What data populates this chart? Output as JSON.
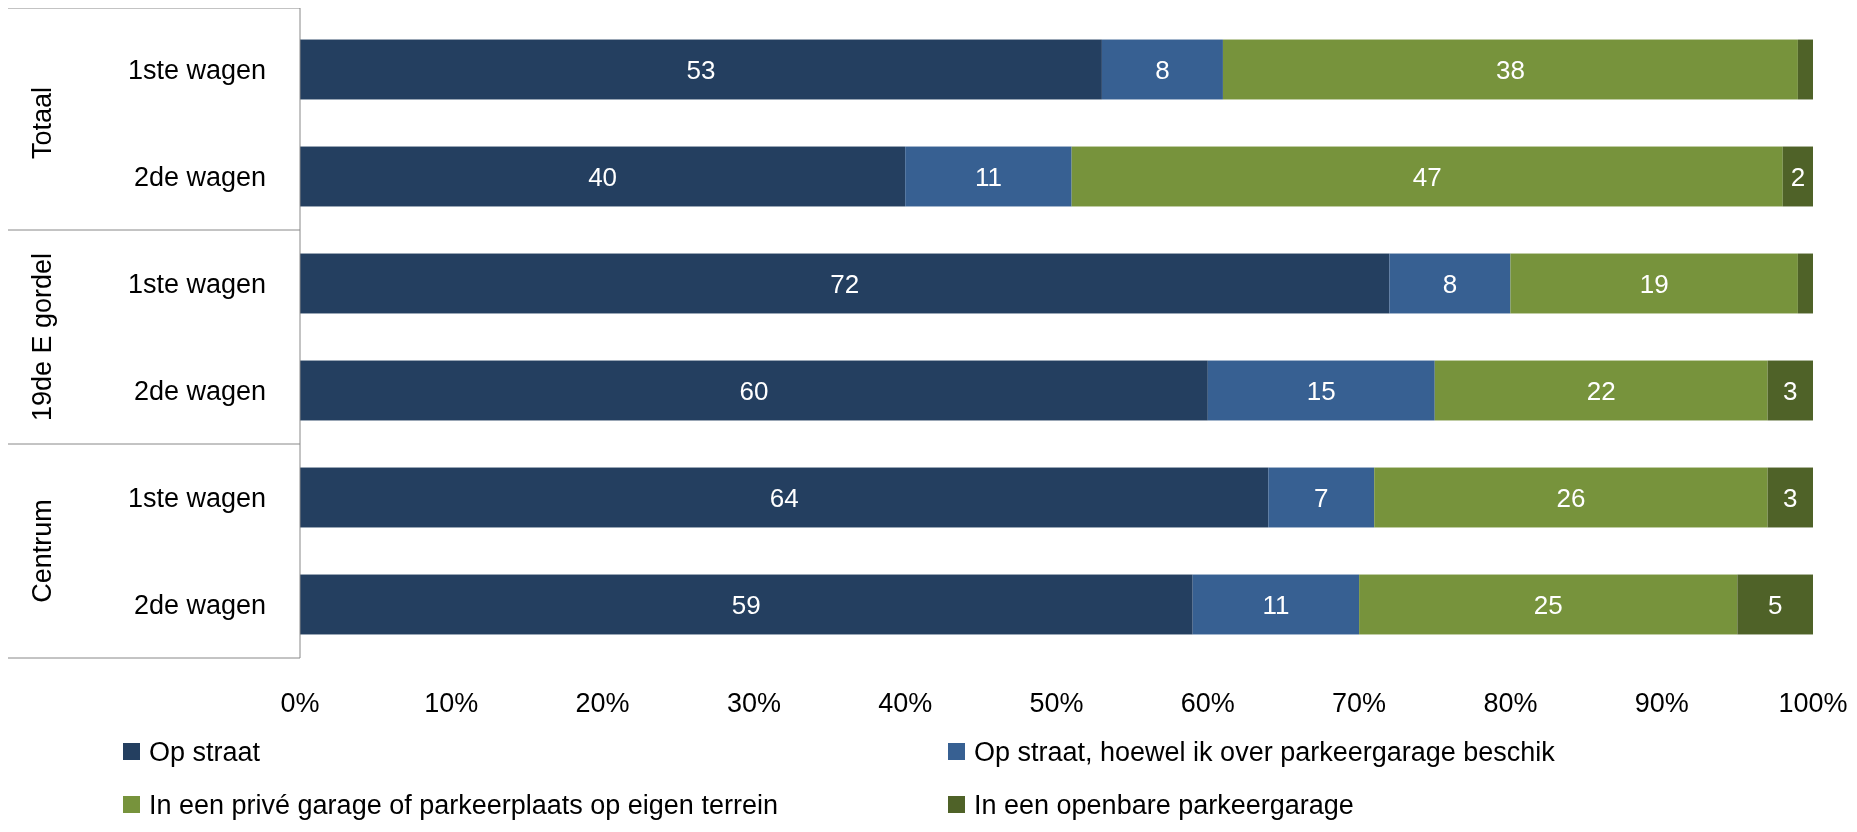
{
  "chart_data": {
    "type": "bar",
    "orientation": "horizontal",
    "stacked": true,
    "categories": [
      "1ste wagen",
      "2de wagen",
      "1ste wagen",
      "2de wagen",
      "1ste wagen",
      "2de wagen"
    ],
    "annotations": [
      "Totaal",
      "19de E gordel",
      "Centrum"
    ],
    "series": [
      {
        "name": "Op straat",
        "color": "#243f60",
        "values": [
          53,
          40,
          72,
          60,
          64,
          59
        ],
        "value_labels": [
          "53",
          "40",
          "72",
          "60",
          "64",
          "59"
        ]
      },
      {
        "name": "Op straat, hoewel ik over parkeergarage beschik",
        "color": "#376092",
        "values": [
          8,
          11,
          8,
          15,
          7,
          11
        ],
        "value_labels": [
          "8",
          "11",
          "8",
          "15",
          "7",
          "11"
        ]
      },
      {
        "name": "In een privé garage of parkeerplaats op eigen terrein",
        "color": "#77933c",
        "values": [
          38,
          47,
          19,
          22,
          26,
          25
        ],
        "value_labels": [
          "38",
          "47",
          "19",
          "22",
          "26",
          "25"
        ]
      },
      {
        "name": "In een openbare parkeergarage",
        "color": "#4f6228",
        "values": [
          1,
          2,
          1,
          3,
          3,
          5
        ],
        "value_labels": [
          null,
          "2",
          null,
          "3",
          "3",
          "5"
        ]
      }
    ],
    "xlim": [
      0,
      100
    ],
    "xticks": [
      {
        "value": 0,
        "label": "0%"
      },
      {
        "value": 10,
        "label": "10%"
      },
      {
        "value": 20,
        "label": "20%"
      },
      {
        "value": 30,
        "label": "30%"
      },
      {
        "value": 40,
        "label": "40%"
      },
      {
        "value": 50,
        "label": "50%"
      },
      {
        "value": 60,
        "label": "60%"
      },
      {
        "value": 70,
        "label": "70%"
      },
      {
        "value": 80,
        "label": "80%"
      },
      {
        "value": 90,
        "label": "90%"
      },
      {
        "value": 100,
        "label": "100%"
      }
    ],
    "legend": "bottom"
  }
}
